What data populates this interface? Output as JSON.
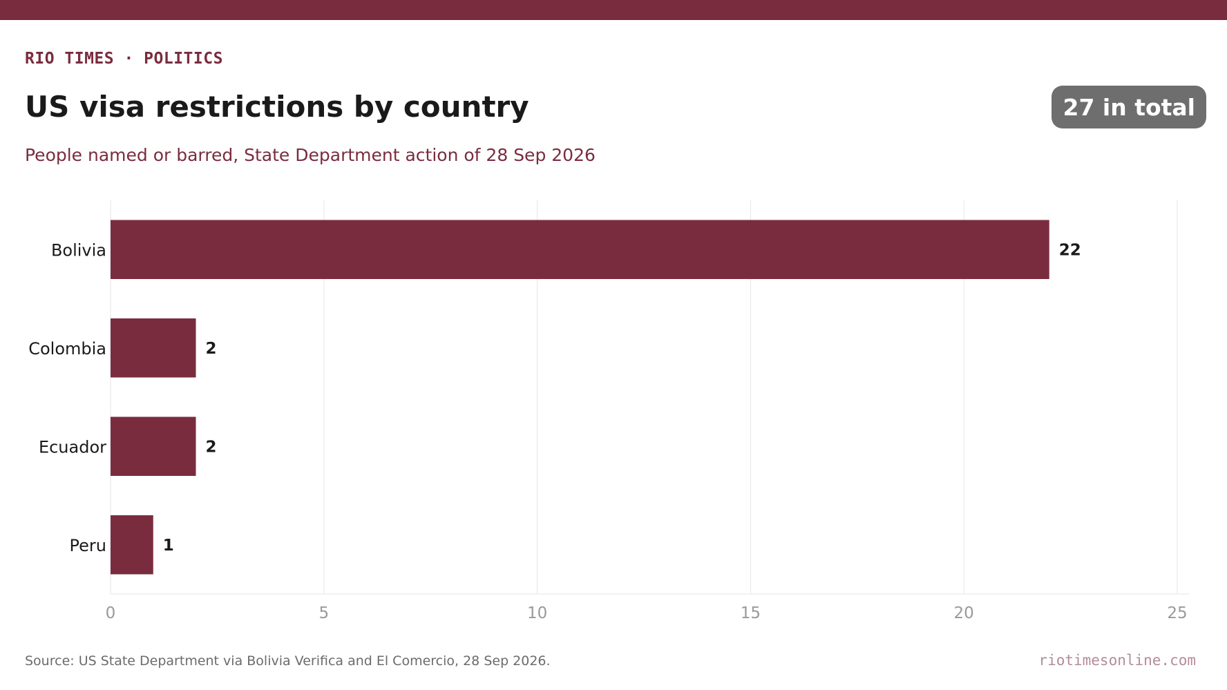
{
  "header": {
    "kicker": "RIO TIMES · POLITICS",
    "title": "US visa restrictions by country",
    "subtitle": "People named or barred, State Department action of 28 Sep 2026",
    "badge": "27 in total"
  },
  "footer": {
    "source": "Source: US State Department via Bolivia Verifica and El Comercio, 28 Sep 2026.",
    "site": "riotimesonline.com"
  },
  "colors": {
    "accent": "#7a2c3f",
    "badge_bg": "#6e6e6e",
    "grid": "#e6e6e6",
    "tick_text": "#999999",
    "label_text": "#1a1a1a"
  },
  "chart_data": {
    "type": "bar",
    "orientation": "horizontal",
    "categories": [
      "Bolivia",
      "Colombia",
      "Ecuador",
      "Peru"
    ],
    "values": [
      22,
      2,
      2,
      1
    ],
    "data_labels": [
      "22",
      "2",
      "2",
      "1"
    ],
    "xlim": [
      0,
      25
    ],
    "xticks": [
      0,
      5,
      10,
      15,
      20,
      25
    ],
    "grid": true,
    "legend": "none"
  }
}
